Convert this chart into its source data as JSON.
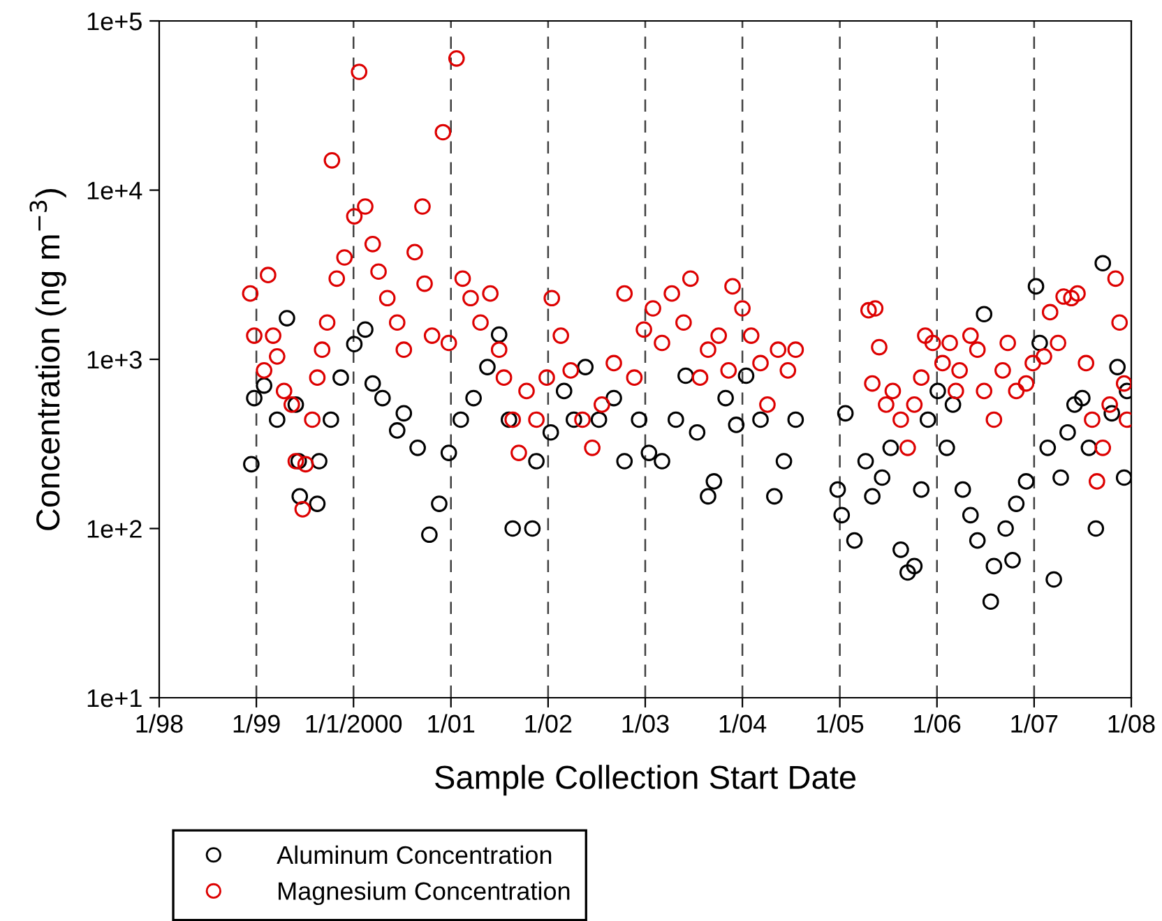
{
  "chart_data": {
    "type": "scatter",
    "xlabel": "Sample Collection Start Date",
    "ylabel": "Concentration (ng m$^{−3}$)",
    "log": "y",
    "marker": "circle",
    "legend": "bottom left",
    "grid": false,
    "xlim": [
      "1998-01-01",
      "2008-01-01"
    ],
    "xticks": [
      {
        "value": "1998-01-01",
        "label": "1/98"
      },
      {
        "value": "1999-01-01",
        "label": "1/99"
      },
      {
        "value": "2000-01-01",
        "label": "1/1/2000"
      },
      {
        "value": "2001-01-01",
        "label": "1/01"
      },
      {
        "value": "2002-01-01",
        "label": "1/02"
      },
      {
        "value": "2003-01-01",
        "label": "1/03"
      },
      {
        "value": "2004-01-01",
        "label": "1/04"
      },
      {
        "value": "2005-01-01",
        "label": "1/05"
      },
      {
        "value": "2006-01-01",
        "label": "1/06"
      },
      {
        "value": "2007-01-01",
        "label": "1/07"
      },
      {
        "value": "2008-01-01",
        "label": "1/08"
      }
    ],
    "ylim": [
      10,
      100000
    ],
    "yticks": [
      {
        "value": 10,
        "label": "1e+1"
      },
      {
        "value": 100,
        "label": "1e+2"
      },
      {
        "value": 1000,
        "label": "1e+3"
      },
      {
        "value": 10000,
        "label": "1e+4"
      },
      {
        "value": 100000,
        "label": "1e+5"
      }
    ],
    "ref_lines": [
      {
        "axis": "x",
        "value": "1999-01-01",
        "color": "#404040",
        "line_style": "dashed"
      },
      {
        "axis": "x",
        "value": "2000-01-01",
        "color": "#404040",
        "line_style": "dashed"
      },
      {
        "axis": "x",
        "value": "2001-01-01",
        "color": "#404040",
        "line_style": "dashed"
      },
      {
        "axis": "x",
        "value": "2002-01-01",
        "color": "#404040",
        "line_style": "dashed"
      },
      {
        "axis": "x",
        "value": "2003-01-01",
        "color": "#404040",
        "line_style": "dashed"
      },
      {
        "axis": "x",
        "value": "2004-01-01",
        "color": "#404040",
        "line_style": "dashed"
      },
      {
        "axis": "x",
        "value": "2005-01-01",
        "color": "#404040",
        "line_style": "dashed"
      },
      {
        "axis": "x",
        "value": "2006-01-01",
        "color": "#404040",
        "line_style": "dashed"
      },
      {
        "axis": "x",
        "value": "2007-01-01",
        "color": "#404040",
        "line_style": "dashed"
      }
    ],
    "series": [
      {
        "name": "Aluminum Concentration",
        "color": "#000000",
        "x": [
          "1998-12-13",
          "1998-12-24",
          "1999-01-30",
          "1999-03-20",
          "1999-04-26",
          "1999-05-29",
          "1999-06-09",
          "1999-06-13",
          "1999-08-18",
          "1999-08-25",
          "1999-10-08",
          "1999-11-14",
          "2000-01-04",
          "2000-02-14",
          "2000-03-13",
          "2000-04-19",
          "2000-06-13",
          "2000-07-08",
          "2000-08-29",
          "2000-10-12",
          "2000-11-18",
          "2000-12-24",
          "2001-02-07",
          "2001-03-27",
          "2001-05-18",
          "2001-07-01",
          "2001-08-07",
          "2001-08-21",
          "2001-11-03",
          "2001-11-18",
          "2002-01-11",
          "2002-03-02",
          "2002-04-08",
          "2002-05-21",
          "2002-07-11",
          "2002-09-05",
          "2002-10-15",
          "2002-12-09",
          "2003-01-15",
          "2003-03-05",
          "2003-04-26",
          "2003-06-02",
          "2003-07-15",
          "2003-08-25",
          "2003-09-16",
          "2003-10-30",
          "2003-12-09",
          "2004-01-15",
          "2004-03-09",
          "2004-04-30",
          "2004-06-05",
          "2004-07-19",
          "2004-12-24",
          "2005-01-08",
          "2005-01-22",
          "2005-02-25",
          "2005-04-08",
          "2005-05-03",
          "2005-06-09",
          "2005-07-11",
          "2005-08-18",
          "2005-09-13",
          "2005-10-08",
          "2005-11-03",
          "2005-11-28",
          "2006-01-04",
          "2006-02-07",
          "2006-03-02",
          "2006-04-08",
          "2006-05-07",
          "2006-06-02",
          "2006-06-27",
          "2006-07-22",
          "2006-08-03",
          "2006-09-16",
          "2006-10-12",
          "2006-10-26",
          "2006-12-02",
          "2007-01-08",
          "2007-01-22",
          "2007-02-21",
          "2007-03-16",
          "2007-04-11",
          "2007-05-07",
          "2007-06-02",
          "2007-07-01",
          "2007-07-26",
          "2007-08-21",
          "2007-09-16",
          "2007-10-20",
          "2007-11-10",
          "2007-12-05",
          "2007-12-16"
        ],
        "values": [
          240,
          590,
          700,
          440,
          1750,
          540,
          250,
          155,
          140,
          250,
          440,
          780,
          1230,
          1500,
          720,
          590,
          380,
          480,
          300,
          92,
          140,
          280,
          440,
          590,
          900,
          1400,
          440,
          100,
          100,
          250,
          370,
          650,
          440,
          900,
          440,
          590,
          250,
          440,
          280,
          250,
          440,
          800,
          370,
          155,
          190,
          590,
          410,
          800,
          440,
          155,
          250,
          440,
          170,
          120,
          480,
          85,
          250,
          155,
          200,
          300,
          75,
          55,
          60,
          170,
          440,
          650,
          300,
          540,
          170,
          120,
          85,
          1850,
          37,
          60,
          100,
          65,
          140,
          190,
          2700,
          1250,
          300,
          50,
          200,
          370,
          540,
          590,
          300,
          100,
          3700,
          480,
          900,
          200,
          650
        ]
      },
      {
        "name": "Magnesium Concentration",
        "color": "#dd0000",
        "x": [
          "1998-12-09",
          "1998-12-24",
          "1999-01-30",
          "1999-02-14",
          "1999-03-05",
          "1999-03-20",
          "1999-04-15",
          "1999-05-14",
          "1999-05-29",
          "1999-06-24",
          "1999-07-05",
          "1999-07-30",
          "1999-08-18",
          "1999-09-05",
          "1999-09-24",
          "1999-10-12",
          "1999-10-30",
          "1999-11-28",
          "2000-01-04",
          "2000-01-22",
          "2000-02-14",
          "2000-03-13",
          "2000-04-04",
          "2000-05-07",
          "2000-06-13",
          "2000-07-08",
          "2000-08-18",
          "2000-09-16",
          "2000-09-24",
          "2000-10-22",
          "2000-12-02",
          "2000-12-24",
          "2001-01-22",
          "2001-02-14",
          "2001-03-16",
          "2001-04-22",
          "2001-05-29",
          "2001-07-01",
          "2001-07-19",
          "2001-08-21",
          "2001-09-13",
          "2001-10-12",
          "2001-11-18",
          "2001-12-27",
          "2002-01-15",
          "2002-02-18",
          "2002-03-27",
          "2002-05-10",
          "2002-06-16",
          "2002-07-22",
          "2002-09-05",
          "2002-10-15",
          "2002-11-21",
          "2002-12-27",
          "2003-01-30",
          "2003-03-05",
          "2003-04-11",
          "2003-05-25",
          "2003-06-20",
          "2003-07-26",
          "2003-08-25",
          "2003-10-04",
          "2003-11-10",
          "2003-11-25",
          "2004-01-01",
          "2004-02-03",
          "2004-03-09",
          "2004-04-04",
          "2004-05-14",
          "2004-06-20",
          "2004-07-19",
          "2005-04-19",
          "2005-05-14",
          "2005-05-29",
          "2005-05-03",
          "2005-06-24",
          "2005-07-19",
          "2005-08-18",
          "2005-09-13",
          "2005-10-08",
          "2005-11-03",
          "2005-11-18",
          "2005-12-16",
          "2006-01-22",
          "2006-02-18",
          "2006-03-13",
          "2006-03-27",
          "2006-05-07",
          "2006-06-02",
          "2006-06-27",
          "2006-08-03",
          "2006-09-05",
          "2006-09-24",
          "2006-10-26",
          "2006-12-02",
          "2006-12-27",
          "2007-02-07",
          "2007-03-02",
          "2007-04-01",
          "2007-04-22",
          "2007-05-21",
          "2007-06-13",
          "2007-07-15",
          "2007-08-07",
          "2007-08-25",
          "2007-09-16",
          "2007-10-12",
          "2007-11-03",
          "2007-11-18",
          "2007-12-05",
          "2007-12-16"
        ],
        "values": [
          2450,
          1380,
          860,
          3150,
          1380,
          1040,
          650,
          540,
          250,
          130,
          240,
          440,
          780,
          1140,
          1650,
          15000,
          3000,
          4000,
          7000,
          50000,
          8000,
          4800,
          3300,
          2300,
          1650,
          1140,
          4300,
          8000,
          2800,
          1380,
          22000,
          1250,
          60000,
          3000,
          2300,
          1650,
          2450,
          1140,
          780,
          440,
          280,
          650,
          440,
          780,
          2300,
          1380,
          860,
          440,
          300,
          540,
          950,
          2450,
          780,
          1500,
          2000,
          1250,
          2450,
          1650,
          3000,
          780,
          1140,
          1380,
          860,
          2700,
          2000,
          1380,
          950,
          540,
          1140,
          860,
          1140,
          1950,
          2000,
          1180,
          720,
          540,
          650,
          440,
          300,
          540,
          780,
          1380,
          1250,
          950,
          1250,
          650,
          860,
          1380,
          1140,
          650,
          440,
          860,
          1250,
          650,
          720,
          950,
          1040,
          1900,
          1250,
          2350,
          2300,
          2450,
          950,
          440,
          190,
          300,
          540,
          3000,
          1650,
          720,
          440
        ]
      }
    ]
  }
}
